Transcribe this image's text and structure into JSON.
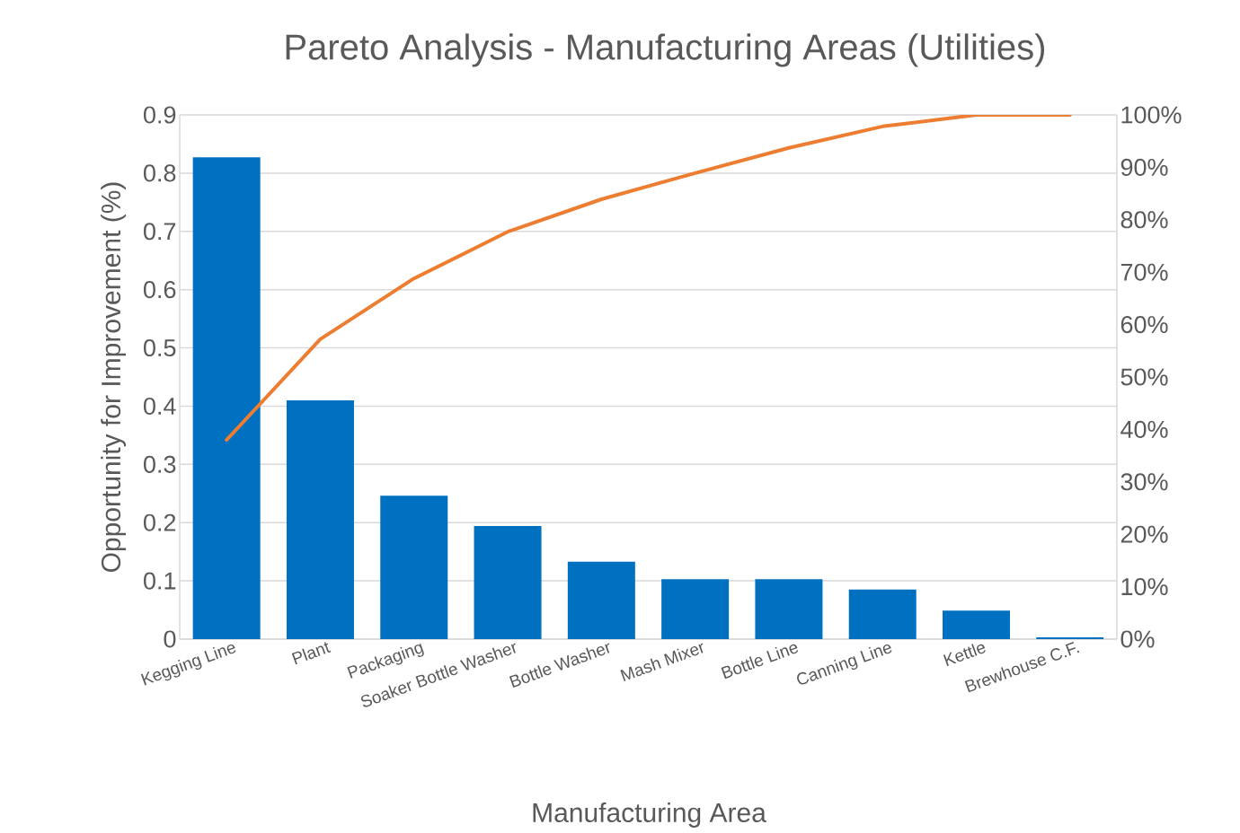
{
  "chart_data": {
    "type": "bar",
    "title": "Pareto Analysis - Manufacturing Areas (Utilities)",
    "xlabel": "Manufacturing Area",
    "ylabel": "Opportunity for Improvement (%)",
    "categories": [
      "Kegging Line",
      "Plant",
      "Packaging",
      "Soaker Bottle Washer",
      "Bottle Washer",
      "Mash Mixer",
      "Bottle Line",
      "Canning Line",
      "Kettle",
      "Brewhouse C.F."
    ],
    "series": [
      {
        "color": "#0070c0",
        "values": [
          0.827,
          0.41,
          0.246,
          0.194,
          0.133,
          0.103,
          0.103,
          0.085,
          0.049,
          0.003
        ]
      },
      {
        "type": "line",
        "axis": "y2",
        "color": "#ed7d31",
        "values": [
          38,
          57.2,
          68.8,
          77.7,
          83.9,
          88.9,
          93.7,
          97.8,
          100,
          100
        ]
      }
    ],
    "ylim": [
      0,
      0.9
    ],
    "yticks": [
      0,
      0.1,
      0.2,
      0.3,
      0.4,
      0.5,
      0.6,
      0.7,
      0.8,
      0.9
    ],
    "y2lim": [
      0,
      100
    ],
    "y2ticks": [
      {
        "value": 0,
        "label": "0%"
      },
      {
        "value": 10,
        "label": "10%"
      },
      {
        "value": 20,
        "label": "20%"
      },
      {
        "value": 30,
        "label": "30%"
      },
      {
        "value": 40,
        "label": "40%"
      },
      {
        "value": 50,
        "label": "50%"
      },
      {
        "value": 60,
        "label": "60%"
      },
      {
        "value": 70,
        "label": "70%"
      },
      {
        "value": 80,
        "label": "80%"
      },
      {
        "value": 90,
        "label": "90%"
      },
      {
        "value": 100,
        "label": "100%"
      }
    ],
    "grid": "y",
    "marker": "none"
  }
}
